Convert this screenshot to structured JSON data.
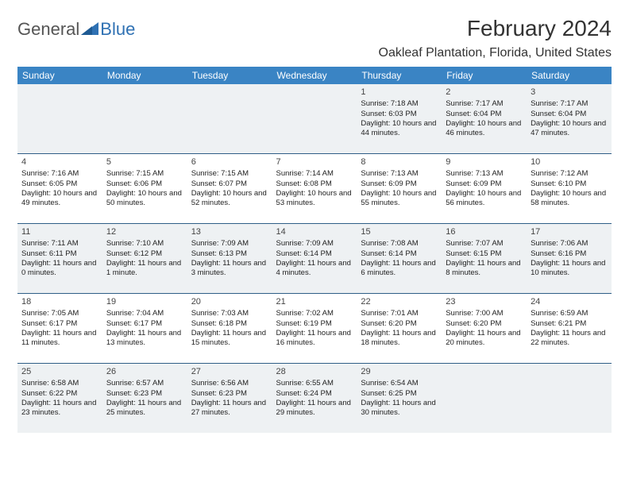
{
  "brand": {
    "part1": "General",
    "part2": "Blue"
  },
  "title": "February 2024",
  "location": "Oakleaf Plantation, Florida, United States",
  "colors": {
    "header_bg": "#3a84c4",
    "header_text": "#ffffff",
    "row_divider": "#2f5e87",
    "shade_bg": "#eef1f3",
    "logo_blue": "#2f71b3"
  },
  "day_headers": [
    "Sunday",
    "Monday",
    "Tuesday",
    "Wednesday",
    "Thursday",
    "Friday",
    "Saturday"
  ],
  "weeks": [
    [
      null,
      null,
      null,
      null,
      {
        "n": "1",
        "sr": "7:18 AM",
        "ss": "6:03 PM",
        "dl": "10 hours and 44 minutes."
      },
      {
        "n": "2",
        "sr": "7:17 AM",
        "ss": "6:04 PM",
        "dl": "10 hours and 46 minutes."
      },
      {
        "n": "3",
        "sr": "7:17 AM",
        "ss": "6:04 PM",
        "dl": "10 hours and 47 minutes."
      }
    ],
    [
      {
        "n": "4",
        "sr": "7:16 AM",
        "ss": "6:05 PM",
        "dl": "10 hours and 49 minutes."
      },
      {
        "n": "5",
        "sr": "7:15 AM",
        "ss": "6:06 PM",
        "dl": "10 hours and 50 minutes."
      },
      {
        "n": "6",
        "sr": "7:15 AM",
        "ss": "6:07 PM",
        "dl": "10 hours and 52 minutes."
      },
      {
        "n": "7",
        "sr": "7:14 AM",
        "ss": "6:08 PM",
        "dl": "10 hours and 53 minutes."
      },
      {
        "n": "8",
        "sr": "7:13 AM",
        "ss": "6:09 PM",
        "dl": "10 hours and 55 minutes."
      },
      {
        "n": "9",
        "sr": "7:13 AM",
        "ss": "6:09 PM",
        "dl": "10 hours and 56 minutes."
      },
      {
        "n": "10",
        "sr": "7:12 AM",
        "ss": "6:10 PM",
        "dl": "10 hours and 58 minutes."
      }
    ],
    [
      {
        "n": "11",
        "sr": "7:11 AM",
        "ss": "6:11 PM",
        "dl": "11 hours and 0 minutes."
      },
      {
        "n": "12",
        "sr": "7:10 AM",
        "ss": "6:12 PM",
        "dl": "11 hours and 1 minute."
      },
      {
        "n": "13",
        "sr": "7:09 AM",
        "ss": "6:13 PM",
        "dl": "11 hours and 3 minutes."
      },
      {
        "n": "14",
        "sr": "7:09 AM",
        "ss": "6:14 PM",
        "dl": "11 hours and 4 minutes."
      },
      {
        "n": "15",
        "sr": "7:08 AM",
        "ss": "6:14 PM",
        "dl": "11 hours and 6 minutes."
      },
      {
        "n": "16",
        "sr": "7:07 AM",
        "ss": "6:15 PM",
        "dl": "11 hours and 8 minutes."
      },
      {
        "n": "17",
        "sr": "7:06 AM",
        "ss": "6:16 PM",
        "dl": "11 hours and 10 minutes."
      }
    ],
    [
      {
        "n": "18",
        "sr": "7:05 AM",
        "ss": "6:17 PM",
        "dl": "11 hours and 11 minutes."
      },
      {
        "n": "19",
        "sr": "7:04 AM",
        "ss": "6:17 PM",
        "dl": "11 hours and 13 minutes."
      },
      {
        "n": "20",
        "sr": "7:03 AM",
        "ss": "6:18 PM",
        "dl": "11 hours and 15 minutes."
      },
      {
        "n": "21",
        "sr": "7:02 AM",
        "ss": "6:19 PM",
        "dl": "11 hours and 16 minutes."
      },
      {
        "n": "22",
        "sr": "7:01 AM",
        "ss": "6:20 PM",
        "dl": "11 hours and 18 minutes."
      },
      {
        "n": "23",
        "sr": "7:00 AM",
        "ss": "6:20 PM",
        "dl": "11 hours and 20 minutes."
      },
      {
        "n": "24",
        "sr": "6:59 AM",
        "ss": "6:21 PM",
        "dl": "11 hours and 22 minutes."
      }
    ],
    [
      {
        "n": "25",
        "sr": "6:58 AM",
        "ss": "6:22 PM",
        "dl": "11 hours and 23 minutes."
      },
      {
        "n": "26",
        "sr": "6:57 AM",
        "ss": "6:23 PM",
        "dl": "11 hours and 25 minutes."
      },
      {
        "n": "27",
        "sr": "6:56 AM",
        "ss": "6:23 PM",
        "dl": "11 hours and 27 minutes."
      },
      {
        "n": "28",
        "sr": "6:55 AM",
        "ss": "6:24 PM",
        "dl": "11 hours and 29 minutes."
      },
      {
        "n": "29",
        "sr": "6:54 AM",
        "ss": "6:25 PM",
        "dl": "11 hours and 30 minutes."
      },
      null,
      null
    ]
  ],
  "labels": {
    "sunrise": "Sunrise:",
    "sunset": "Sunset:",
    "daylight": "Daylight:"
  }
}
